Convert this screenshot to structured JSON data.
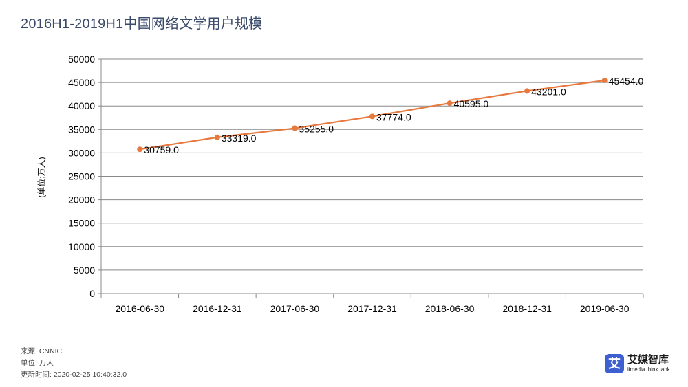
{
  "title": "2016H1-2019H1中国网络文学用户规模",
  "footer": {
    "source": "来源: CNNIC",
    "unit": "单位: 万人",
    "updated": "更新时间: 2020-02-25 10:40:32.0"
  },
  "logo": {
    "badge": "艾",
    "name": "艾媒智库",
    "name_en": "iimedia think tank"
  },
  "colors": {
    "series": "#e8793e",
    "grid": "#888888",
    "logo": "#3d5fd0"
  },
  "chart_data": {
    "type": "line",
    "title": "2016H1-2019H1中国网络文学用户规模",
    "xlabel": "",
    "ylabel": "(单位:万人)",
    "categories": [
      "2016-06-30",
      "2016-12-31",
      "2017-06-30",
      "2017-12-31",
      "2018-06-30",
      "2018-12-31",
      "2019-06-30"
    ],
    "series": [
      {
        "values": [
          30759.0,
          33319.0,
          35255.0,
          37774.0,
          40595.0,
          43201.0,
          45454.0
        ]
      }
    ],
    "data_labels": [
      "30759.0",
      "33319.0",
      "35255.0",
      "37774.0",
      "40595.0",
      "43201.0",
      "45454.0"
    ],
    "yticks": [
      "0",
      "5000",
      "10000",
      "15000",
      "20000",
      "25000",
      "30000",
      "35000",
      "40000",
      "45000",
      "50000"
    ],
    "ylim": [
      0,
      50000
    ],
    "grid": true,
    "legend": "none"
  }
}
